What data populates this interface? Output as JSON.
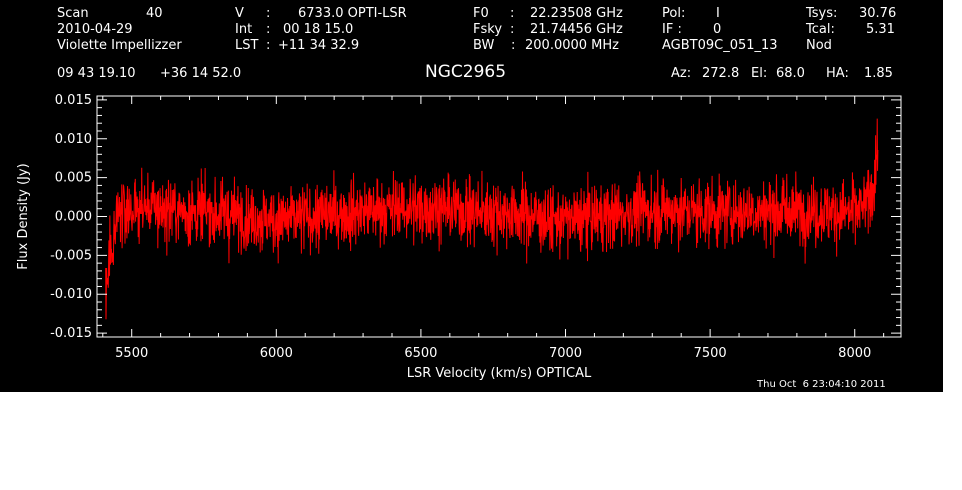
{
  "header": {
    "scan_label": "Scan",
    "scan_value": "40",
    "date": "2010-04-29",
    "observer": "Violette Impellizzer",
    "v_label": "V",
    "v_sep": ":",
    "v_value": "6733.0 OPTI-LSR",
    "int_label": "Int",
    "int_sep": ":",
    "int_value": "00 18 15.0",
    "lst_label": "LST",
    "lst_sep": ":",
    "lst_value": "+11 34 32.9",
    "f0_label": "F0",
    "f0_sep": ":",
    "f0_value": "22.23508 GHz",
    "fsky_label": "Fsky",
    "fsky_sep": ":",
    "fsky_value": "21.74456 GHz",
    "bw_label": "BW",
    "bw_sep": ":",
    "bw_value": "200.0000 MHz",
    "pol_label": "Pol:",
    "pol_value": "I",
    "if_label": "IF :",
    "if_value": "0",
    "project": "AGBT09C_051_13",
    "tsys_label": "Tsys:",
    "tsys_value": "30.76",
    "tcal_label": "Tcal:",
    "tcal_value": "5.31",
    "mode": "Nod",
    "ra": "09 43 19.10",
    "dec": "+36 14 52.0",
    "source": "NGC2965",
    "az_label": "Az:",
    "az_value": "272.8",
    "el_label": "El:",
    "el_value": "68.0",
    "ha_label": "HA:",
    "ha_value": "1.85",
    "timestamp": "Thu Oct  6 23:04:10 2011"
  },
  "colors": {
    "background": "#000000",
    "foreground": "#ffffff",
    "trace": "#ff0000"
  },
  "chart_data": {
    "type": "line",
    "xlabel": "LSR Velocity (km/s) OPTICAL",
    "ylabel": "Flux Density (Jy)",
    "xlim": [
      5380,
      8160
    ],
    "ylim": [
      -0.0155,
      0.0155
    ],
    "xticks": [
      5500,
      6000,
      6500,
      7000,
      7500,
      8000
    ],
    "xtick_labels": [
      "5500",
      "6000",
      "6500",
      "7000",
      "7500",
      "8000"
    ],
    "yticks": [
      -0.015,
      -0.01,
      -0.005,
      0.0,
      0.005,
      0.01,
      0.015
    ],
    "ytick_labels": [
      "-0.015",
      "-0.010",
      "-0.005",
      "0.000",
      "0.005",
      "0.010",
      "0.015"
    ],
    "grid": false,
    "series": [
      {
        "x_start": 5410,
        "x_end": 8080,
        "baseline_x": [
          5410,
          5420,
          5450,
          5550,
          5650,
          5800,
          5900,
          6000,
          6150,
          6300,
          6450,
          6550,
          6700,
          6850,
          6950,
          7050,
          7200,
          7300,
          7450,
          7600,
          7750,
          7900,
          7980,
          8030,
          8060,
          8080
        ],
        "baseline_y": [
          -0.011,
          -0.006,
          0.0005,
          0.0012,
          0.0008,
          0.0003,
          0.0,
          -0.0005,
          0.0,
          0.0008,
          0.001,
          0.0012,
          0.0006,
          0.0004,
          -0.0006,
          -0.0003,
          0.0004,
          0.0008,
          0.0006,
          0.0006,
          0.0008,
          0.0005,
          0.0006,
          0.001,
          0.003,
          0.009
        ],
        "noise_rms_jy": 0.0028
      }
    ]
  }
}
